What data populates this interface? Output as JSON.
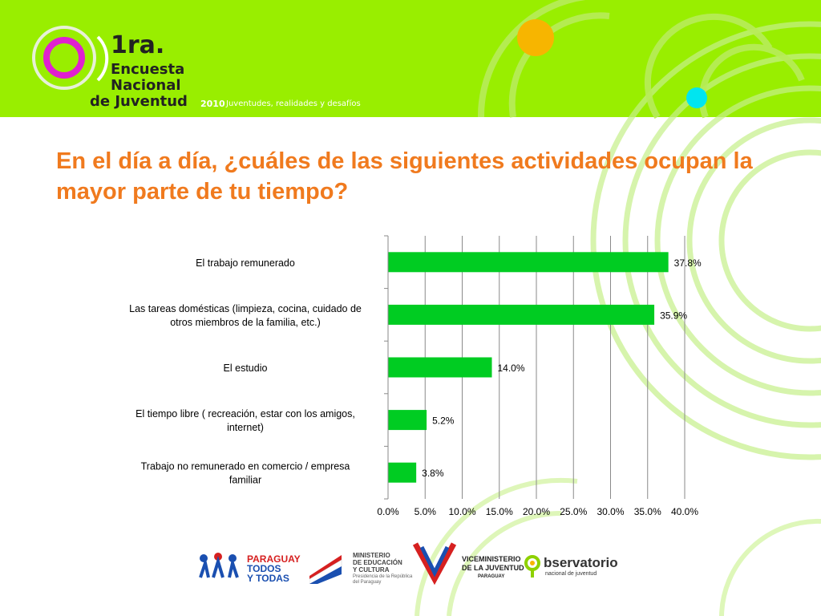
{
  "header": {
    "logo_number": "1ra.",
    "logo_line1": "Encuesta",
    "logo_line2": "Nacional",
    "logo_line3": "de Juventud",
    "year": "2010",
    "tagline": "Juventudes, realidades y desafíos",
    "colors": {
      "background": "#99ee00",
      "magenta": "#e020d0",
      "orange": "#f7b500",
      "cyan": "#00e5f0"
    }
  },
  "slide": {
    "title": "En el día a día, ¿cuáles de las siguientes actividades ocupan la mayor parte de tu tiempo?"
  },
  "chart_data": {
    "type": "bar",
    "orientation": "horizontal",
    "categories": [
      "El trabajo remunerado",
      "Las tareas domésticas (limpieza, cocina, cuidado de otros miembros de la familia, etc.)",
      "El estudio",
      "El tiempo libre ( recreación, estar con los amigos, internet)",
      "Trabajo no remunerado en comercio / empresa familiar"
    ],
    "category_lines": [
      [
        "El trabajo remunerado"
      ],
      [
        "Las tareas domésticas (limpieza, cocina, cuidado de",
        "otros miembros de la familia, etc.)"
      ],
      [
        "El estudio"
      ],
      [
        "El tiempo libre ( recreación, estar con los amigos,",
        "internet)"
      ],
      [
        "Trabajo no remunerado en comercio / empresa",
        "familiar"
      ]
    ],
    "values": [
      37.8,
      35.9,
      14.0,
      5.2,
      3.8
    ],
    "data_labels": [
      "37.8%",
      "35.9%",
      "14.0%",
      "5.2%",
      "3.8%"
    ],
    "xlim": [
      0,
      40
    ],
    "xticks": [
      0,
      5,
      10,
      15,
      20,
      25,
      30,
      35,
      40
    ],
    "xtick_labels": [
      "0.0%",
      "5.0%",
      "10.0%",
      "15.0%",
      "20.0%",
      "25.0%",
      "30.0%",
      "35.0%",
      "40.0%"
    ],
    "grid": true,
    "legend": "none",
    "bar_color": "#00cc22"
  },
  "footer": {
    "logo1_line1": "PARAGUAY",
    "logo1_line2": "TODOS",
    "logo1_line3": "Y TODAS",
    "logo2_line1": "MINISTERIO",
    "logo2_line2": "DE EDUCACIÓN",
    "logo2_line3": "Y CULTURA",
    "logo2_line4": "Presidencia de la República",
    "logo2_line5": "del Paraguay",
    "logo3_line1": "VICEMINISTERIO",
    "logo3_line2": "DE LA JUVENTUD",
    "logo3_line3": "PARAGUAY",
    "logo4_line1": "bservatorio",
    "logo4_line2": "nacional de juventud"
  }
}
